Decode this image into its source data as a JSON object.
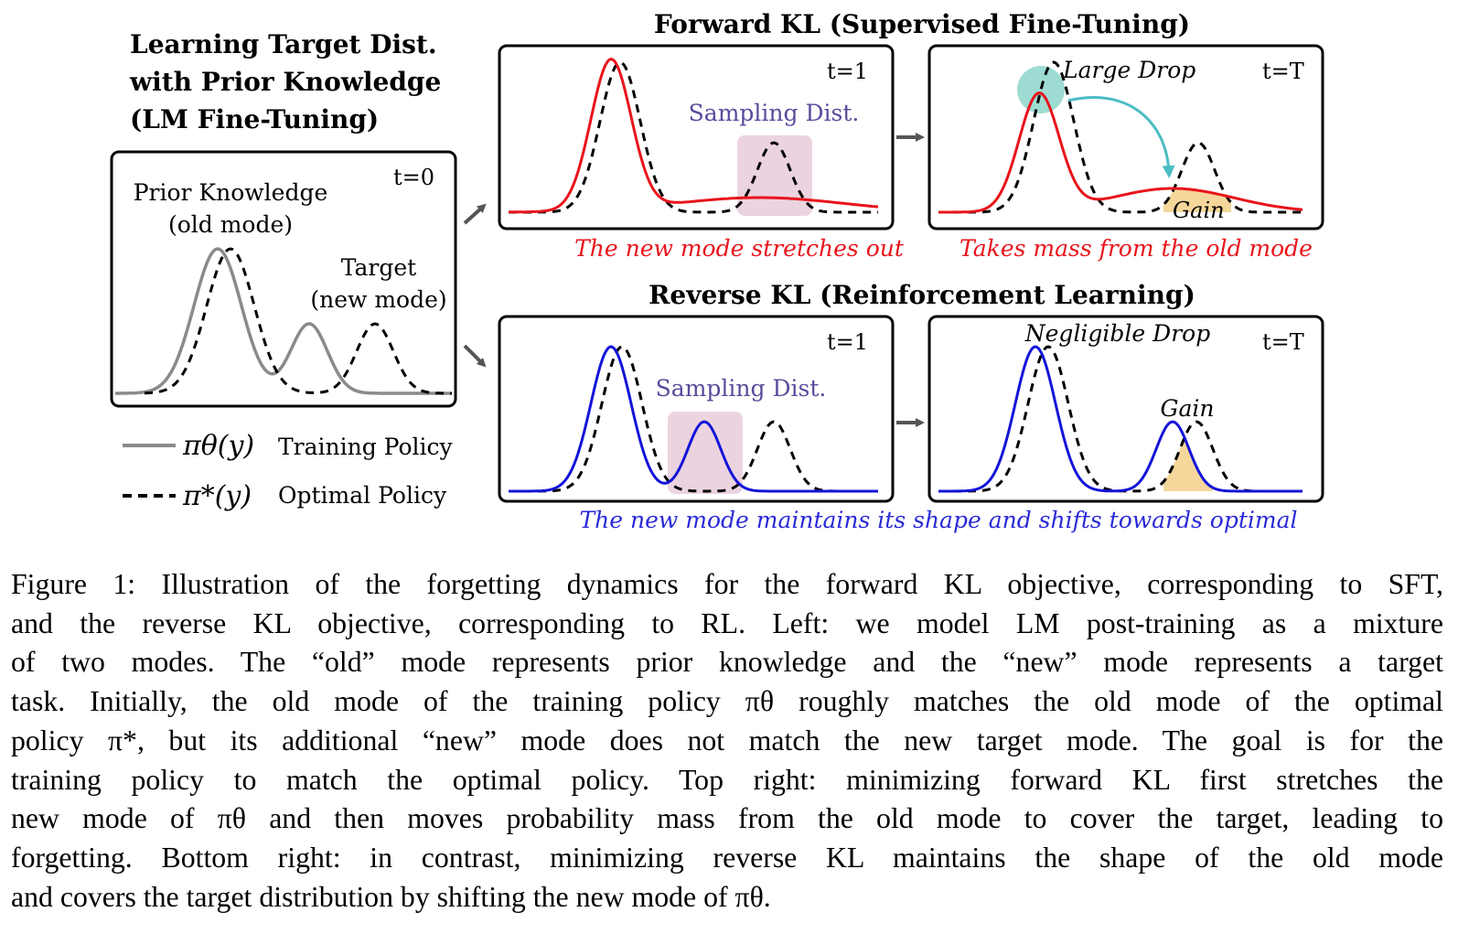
{
  "left_panel": {
    "title_lines": [
      "Learning Target Dist.",
      "with Prior Knowledge",
      "(LM Fine-Tuning)"
    ],
    "time_label": "t=0",
    "prior_label_lines": [
      "Prior Knowledge",
      "(old mode)"
    ],
    "target_label_lines": [
      "Target",
      "(new mode)"
    ]
  },
  "legend": {
    "training_symbol": "πθ(y)",
    "training_label": "Training Policy",
    "optimal_symbol": "π*(y)",
    "optimal_label": "Optimal Policy"
  },
  "forward": {
    "title": "Forward KL (Supervised Fine-Tuning)",
    "t1_label": "t=1",
    "tT_label": "t=T",
    "sampling_label": "Sampling Dist.",
    "large_drop_label": "Large Drop",
    "gain_label": "Gain",
    "caption_left": "The new mode stretches out",
    "caption_right": "Takes mass from the old mode"
  },
  "reverse": {
    "title": "Reverse KL (Reinforcement Learning)",
    "t1_label": "t=1",
    "tT_label": "t=T",
    "sampling_label": "Sampling Dist.",
    "negligible_drop_label": "Negligible Drop",
    "gain_label": "Gain",
    "caption": "The new mode maintains its shape and shifts towards optimal"
  },
  "colors": {
    "training_gray": "#8a8a8a",
    "forward_red": "#e8141b",
    "reverse_blue": "#1414d8",
    "sampling_fill": "#ecd3e0",
    "gain_fill": "#f6d79b",
    "drop_circle": "#86d3c8",
    "arrow_teal": "#4bbcc4",
    "purple_text": "#5b4a9c",
    "forward_caption": "#e8141b",
    "reverse_caption": "#2a2ad8"
  },
  "caption": {
    "lines": [
      "Figure 1: Illustration of the forgetting dynamics for the forward KL objective, corresponding to SFT,",
      "and the reverse KL objective, corresponding to RL. Left: we model LM post-training as a mixture",
      "of two modes. The “old” mode represents prior knowledge and the “new” mode represents a target",
      "task. Initially, the old mode of the training policy πθ roughly matches the old mode of the optimal",
      "policy π*, but its additional “new” mode does not match the new target mode. The goal is for the",
      "training policy to match the optimal policy. Top right: minimizing forward KL first stretches the",
      "new mode of πθ and then moves probability mass from the old mode to cover the target, leading to",
      "forgetting. Bottom right: in contrast, minimizing reverse KL maintains the shape of the old mode",
      "and covers the target distribution by shifting the new mode of πθ."
    ]
  }
}
